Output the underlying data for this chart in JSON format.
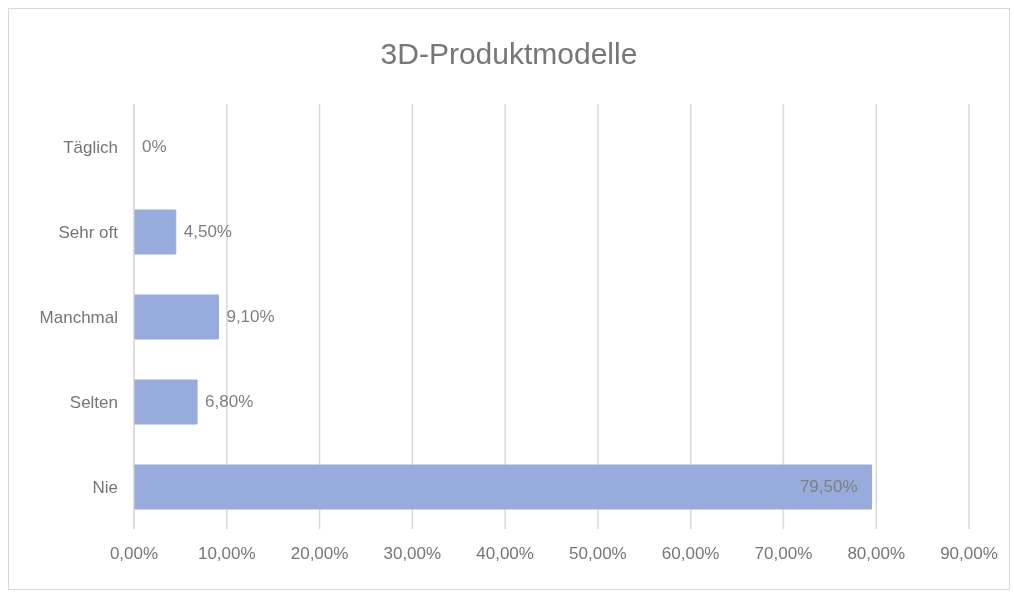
{
  "chart_data": {
    "type": "bar",
    "title": "3D-Produktmodelle",
    "orientation": "horizontal",
    "categories": [
      "Täglich",
      "Sehr oft",
      "Manchmal",
      "Selten",
      "Nie"
    ],
    "values": [
      0,
      4.5,
      9.1,
      6.8,
      79.5
    ],
    "value_labels": [
      "0%",
      "4,50%",
      "9,10%",
      "6,80%",
      "79,50%"
    ],
    "color": "#97abdc",
    "xlim": [
      0,
      90
    ],
    "xticks": [
      {
        "value": 0,
        "label": "0,00%"
      },
      {
        "value": 10,
        "label": "10,00%"
      },
      {
        "value": 20,
        "label": "20,00%"
      },
      {
        "value": 30,
        "label": "30,00%"
      },
      {
        "value": 40,
        "label": "40,00%"
      },
      {
        "value": 50,
        "label": "50,00%"
      },
      {
        "value": 60,
        "label": "60,00%"
      },
      {
        "value": 70,
        "label": "70,00%"
      },
      {
        "value": 80,
        "label": "80,00%"
      },
      {
        "value": 90,
        "label": "90,00%"
      }
    ],
    "grid": "x",
    "legend": false
  }
}
